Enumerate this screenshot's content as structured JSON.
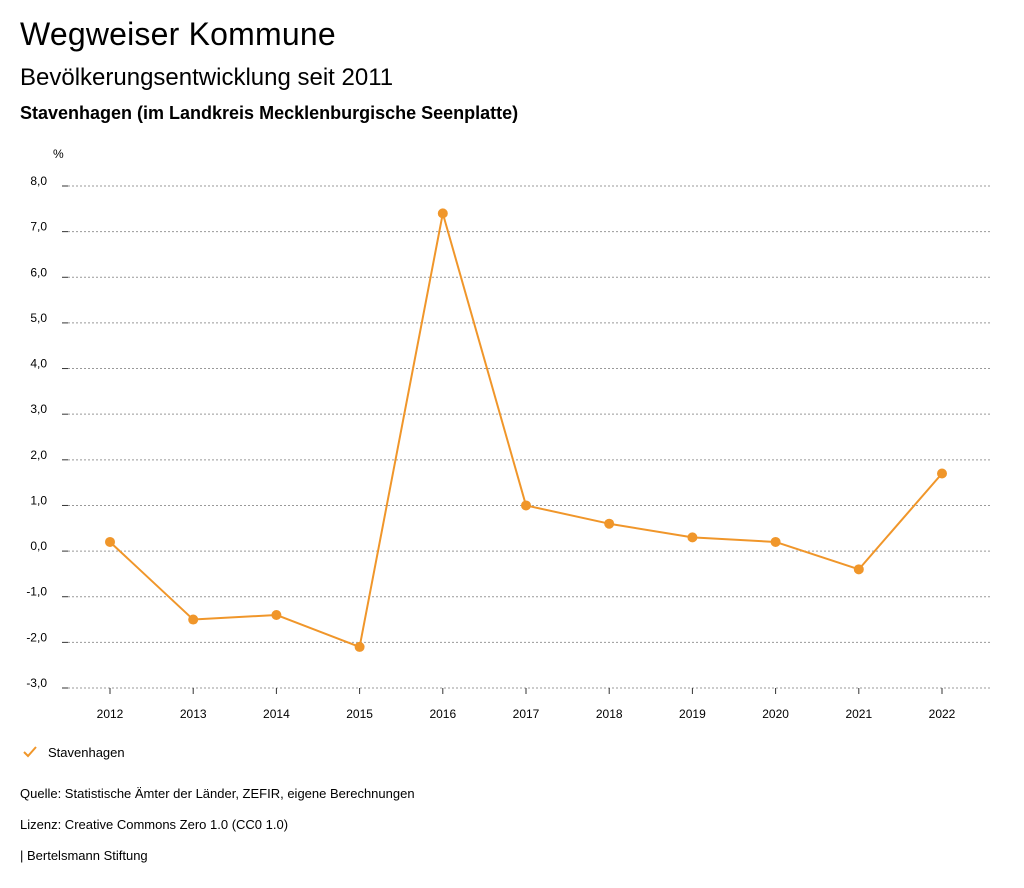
{
  "header": {
    "title": "Wegweiser Kommune",
    "subtitle": "Bevölkerungsentwicklung seit 2011",
    "region": "Stavenhagen (im Landkreis Mecklenburgische Seenplatte)"
  },
  "colors": {
    "series": "#f0962a",
    "grid": "#999999"
  },
  "chart_data": {
    "type": "line",
    "title": "Bevölkerungsentwicklung seit 2011",
    "ylabel": "%",
    "xlabel": "",
    "categories": [
      "2012",
      "2013",
      "2014",
      "2015",
      "2016",
      "2017",
      "2018",
      "2019",
      "2020",
      "2021",
      "2022"
    ],
    "series": [
      {
        "name": "Stavenhagen",
        "values": [
          0.2,
          -1.5,
          -1.4,
          -2.1,
          7.4,
          1.0,
          0.6,
          0.3,
          0.2,
          -0.4,
          1.7
        ]
      }
    ],
    "ylim": [
      -3.0,
      8.0
    ],
    "yticks": [
      "8,0",
      "7,0",
      "6,0",
      "5,0",
      "4,0",
      "3,0",
      "2,0",
      "1,0",
      "0,0",
      "-1,0",
      "-2,0",
      "-3,0"
    ],
    "ytick_values": [
      8,
      7,
      6,
      5,
      4,
      3,
      2,
      1,
      0,
      -1,
      -2,
      -3
    ],
    "grid": true,
    "legend_position": "bottom-left"
  },
  "legend": {
    "label": "Stavenhagen"
  },
  "footer": {
    "source": "Quelle: Statistische Ämter der Länder, ZEFIR, eigene Berechnungen",
    "license": "Lizenz: Creative Commons Zero 1.0 (CC0 1.0)",
    "publisher": "| Bertelsmann Stiftung"
  }
}
